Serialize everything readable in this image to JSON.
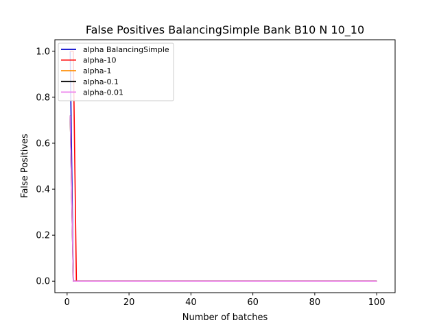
{
  "chart_data": {
    "type": "line",
    "title": "False Positives BalancingSimple Bank B10 N 10_10",
    "xlabel": "Number of batches",
    "ylabel": "False Positives",
    "xlim": [
      -3.95,
      105.95
    ],
    "ylim": [
      -0.05,
      1.05
    ],
    "xticks": [
      0,
      20,
      40,
      60,
      80,
      100
    ],
    "yticks": [
      0.0,
      0.2,
      0.4,
      0.6,
      0.8,
      1.0
    ],
    "xtick_labels": [
      "0",
      "20",
      "40",
      "60",
      "80",
      "100"
    ],
    "ytick_labels": [
      "0.0",
      "0.2",
      "0.4",
      "0.6",
      "0.8",
      "1.0"
    ],
    "grid": false,
    "legend_position": "upper-left",
    "series": [
      {
        "name": "alpha BalancingSimple",
        "color": "#0000cc",
        "x": [
          1,
          2,
          3,
          100
        ],
        "y": [
          1.0,
          0.0,
          0.0,
          0.0
        ]
      },
      {
        "name": "alpha-10",
        "color": "#ff0000",
        "x": [
          1,
          2,
          3,
          100
        ],
        "y": [
          1.0,
          1.0,
          0.0,
          0.0
        ]
      },
      {
        "name": "alpha-1",
        "color": "#ff8c00",
        "x": [
          1,
          2,
          3,
          100
        ],
        "y": [
          0.72,
          0.0,
          0.0,
          0.0
        ]
      },
      {
        "name": "alpha-0.1",
        "color": "#000000",
        "x": [
          1,
          2,
          3,
          100
        ],
        "y": [
          0.72,
          0.0,
          0.0,
          0.0
        ]
      },
      {
        "name": "alpha-0.01",
        "color": "#ee82ee",
        "x": [
          1,
          2,
          3,
          100
        ],
        "y": [
          0.72,
          0.0,
          0.0,
          0.0
        ]
      }
    ]
  }
}
